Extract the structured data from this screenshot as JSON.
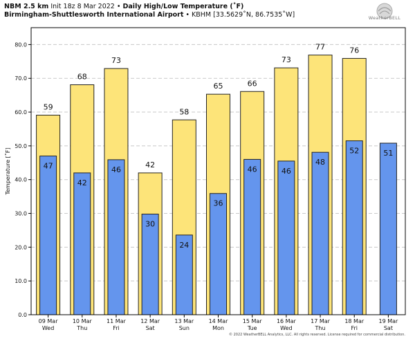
{
  "header": {
    "model": "NBM 2.5 km",
    "init": "Init 18z 8 Mar 2022",
    "bullet": "•",
    "product": "Daily High/Low Temperature (˚F)",
    "station_name": "Birmingham-Shuttlesworth International Airport",
    "station_info": "• KBHM [33.5629˚N, 86.7535˚W]"
  },
  "logo": {
    "text": "WeatherBELL"
  },
  "copyright": "© 2022 WeatherBELL Analytics, LLC. All rights reserved. License required for commercial distribution.",
  "chart_data": {
    "type": "bar",
    "categories": [
      "09 Mar",
      "10 Mar",
      "11 Mar",
      "12 Mar",
      "13 Mar",
      "14 Mar",
      "15 Mar",
      "16 Mar",
      "17 Mar",
      "18 Mar",
      "19 Mar"
    ],
    "weekdays": [
      "Wed",
      "Thu",
      "Fri",
      "Sat",
      "Sun",
      "Mon",
      "Tue",
      "Wed",
      "Thu",
      "Fri",
      "Sat"
    ],
    "series": [
      {
        "color": "#fde479",
        "values": [
          59.1,
          68.1,
          72.9,
          42.0,
          57.7,
          65.3,
          66.1,
          73.1,
          76.9,
          75.9,
          null
        ],
        "labels": [
          "59",
          "68",
          "73",
          "42",
          "58",
          "65",
          "66",
          "73",
          "77",
          "76",
          ""
        ]
      },
      {
        "color": "#6495ed",
        "values": [
          47.0,
          42.0,
          45.9,
          29.8,
          23.6,
          35.9,
          46.0,
          45.5,
          48.1,
          51.5,
          50.8
        ],
        "labels": [
          "47",
          "42",
          "46",
          "30",
          "24",
          "36",
          "46",
          "46",
          "48",
          "52",
          "51"
        ]
      }
    ],
    "title": "Daily High/Low Temperature (˚F)",
    "xlabel": "",
    "ylabel": "Temperature [˚F]",
    "ylim": [
      0,
      85
    ],
    "yticks": [
      "0.0",
      "10.0",
      "20.0",
      "30.0",
      "40.0",
      "50.0",
      "60.0",
      "70.0",
      "80.0"
    ],
    "ytick_values": [
      0,
      10,
      20,
      30,
      40,
      50,
      60,
      70,
      80
    ],
    "grid": true,
    "grid_color": "#c8c8c8"
  }
}
